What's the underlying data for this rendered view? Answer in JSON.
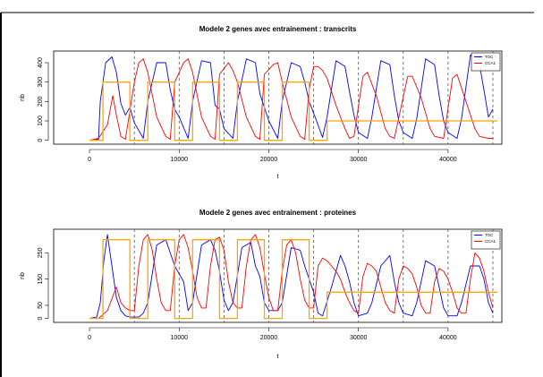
{
  "chart_data": [
    {
      "type": "line",
      "title": "Modele 2 genes avec entrainement : transcrits",
      "xlabel": "t",
      "ylabel": "nb",
      "xlim": [
        -4000,
        46000
      ],
      "ylim": [
        -20,
        460
      ],
      "xticks": [
        "0",
        "10000",
        "20000",
        "30000",
        "40000"
      ],
      "yticks": [
        "0",
        "100",
        "200",
        "300",
        "400"
      ],
      "grid": false,
      "legend_position": "top-right",
      "dashed_vlines": [
        5000,
        10000,
        15000,
        20000,
        25000,
        30000,
        35000,
        40000,
        45000
      ],
      "series": [
        {
          "name": "TOC",
          "color": "#0000ff",
          "x": [
            0,
            1000,
            1200,
            1800,
            2500,
            3000,
            3500,
            4000,
            4500,
            5000,
            6000,
            6500,
            7500,
            8500,
            9000,
            9500,
            10000,
            11000,
            11500,
            12500,
            13500,
            14000,
            14500,
            15000,
            16000,
            16500,
            17500,
            18500,
            19000,
            19500,
            20000,
            21000,
            21500,
            22500,
            23500,
            24000,
            24500,
            25000,
            26000,
            26500,
            27500,
            28500,
            29000,
            29500,
            30000,
            31000,
            31500,
            32500,
            33500,
            34000,
            34500,
            35000,
            36000,
            36500,
            37500,
            38500,
            39000,
            39500,
            40000,
            41000,
            41500,
            42500,
            43500,
            44000,
            44500,
            45000
          ],
          "y": [
            0,
            5,
            200,
            400,
            430,
            350,
            190,
            130,
            170,
            90,
            10,
            200,
            400,
            400,
            260,
            160,
            120,
            10,
            200,
            410,
            400,
            180,
            160,
            60,
            10,
            200,
            420,
            400,
            240,
            170,
            100,
            10,
            200,
            400,
            380,
            300,
            200,
            140,
            15,
            120,
            410,
            380,
            250,
            130,
            40,
            10,
            120,
            410,
            390,
            230,
            100,
            40,
            10,
            110,
            420,
            390,
            230,
            100,
            40,
            10,
            110,
            440,
            390,
            260,
            120,
            160
          ]
        },
        {
          "name": "CCA1",
          "color": "#ff0000",
          "x": [
            0,
            1000,
            2000,
            2600,
            3000,
            3500,
            4000,
            5000,
            5500,
            6000,
            6500,
            7500,
            8500,
            9000,
            9500,
            10500,
            11000,
            11500,
            12500,
            13500,
            14000,
            14500,
            15500,
            16000,
            16500,
            17500,
            18500,
            19000,
            19500,
            20500,
            21000,
            21500,
            22500,
            23500,
            24000,
            24500,
            25000,
            25500,
            26000,
            26500,
            27500,
            28500,
            29000,
            29500,
            30500,
            31000,
            32000,
            33000,
            33500,
            34000,
            35500,
            36000,
            37000,
            38000,
            38500,
            39500,
            40500,
            41000,
            42000,
            43000,
            43500,
            44500,
            45000
          ],
          "y": [
            0,
            10,
            80,
            230,
            130,
            20,
            5,
            300,
            400,
            420,
            350,
            120,
            20,
            5,
            300,
            400,
            420,
            350,
            120,
            20,
            5,
            340,
            400,
            360,
            300,
            120,
            20,
            5,
            340,
            390,
            400,
            300,
            120,
            20,
            5,
            260,
            380,
            380,
            360,
            320,
            180,
            60,
            10,
            20,
            330,
            350,
            230,
            60,
            20,
            10,
            330,
            330,
            220,
            60,
            20,
            10,
            320,
            340,
            200,
            60,
            20,
            10,
            10
          ]
        },
        {
          "name": "",
          "color": "#ffa500",
          "x": [
            0,
            1500,
            1500,
            4500,
            4500,
            6500,
            6500,
            9500,
            9500,
            11500,
            11500,
            14500,
            14500,
            16500,
            16500,
            19500,
            19500,
            21500,
            21500,
            24500,
            24500,
            26500,
            26500,
            45500
          ],
          "y": [
            0,
            0,
            300,
            300,
            0,
            0,
            300,
            300,
            0,
            0,
            300,
            300,
            0,
            0,
            300,
            300,
            0,
            0,
            300,
            300,
            0,
            0,
            100,
            100
          ]
        }
      ]
    },
    {
      "type": "line",
      "title": "Modele 2 genes avec entrainement : proteines",
      "xlabel": "t",
      "ylabel": "nb",
      "xlim": [
        -4000,
        46000
      ],
      "ylim": [
        -15,
        340
      ],
      "xticks": [
        "0",
        "10000",
        "20000",
        "30000",
        "40000"
      ],
      "yticks": [
        "0",
        "50",
        "150",
        "250"
      ],
      "grid": false,
      "legend_position": "top-right",
      "dashed_vlines": [
        5000,
        10000,
        15000,
        20000,
        25000,
        30000,
        35000,
        40000,
        45000
      ],
      "series": [
        {
          "name": "TOC",
          "color": "#0000ff",
          "x": [
            0,
            800,
            1200,
            1600,
            2000,
            2500,
            3000,
            3500,
            4000,
            4500,
            5000,
            5500,
            6000,
            6500,
            7500,
            8500,
            9000,
            9500,
            10000,
            10500,
            11000,
            11500,
            12500,
            13500,
            14000,
            14500,
            15000,
            15500,
            16000,
            17000,
            18000,
            18500,
            19000,
            19500,
            20000,
            21000,
            21500,
            22500,
            23500,
            24000,
            24500,
            25000,
            25500,
            26000,
            27000,
            28000,
            28500,
            29000,
            29500,
            30000,
            31000,
            31500,
            32500,
            33500,
            34000,
            34500,
            35000,
            36000,
            36500,
            37500,
            38500,
            39000,
            39500,
            40000,
            41000,
            41500,
            42500,
            43500,
            44000,
            44500,
            45000
          ],
          "y": [
            0,
            5,
            60,
            220,
            320,
            200,
            80,
            30,
            10,
            5,
            5,
            5,
            20,
            60,
            280,
            300,
            250,
            200,
            170,
            140,
            30,
            60,
            280,
            300,
            260,
            180,
            70,
            30,
            60,
            270,
            290,
            200,
            160,
            60,
            30,
            30,
            60,
            270,
            260,
            200,
            150,
            100,
            20,
            10,
            120,
            240,
            200,
            140,
            60,
            10,
            20,
            60,
            200,
            240,
            140,
            60,
            20,
            10,
            60,
            220,
            200,
            120,
            40,
            10,
            10,
            60,
            200,
            200,
            150,
            60,
            20
          ]
        },
        {
          "name": "CCA1",
          "color": "#ff0000",
          "x": [
            0,
            1000,
            2000,
            3000,
            3500,
            4000,
            4500,
            5000,
            5500,
            6000,
            6500,
            7000,
            7500,
            8000,
            8500,
            9000,
            9500,
            10000,
            10500,
            11000,
            11500,
            12000,
            12500,
            13000,
            13500,
            14000,
            14500,
            15000,
            15500,
            16000,
            16500,
            17000,
            17500,
            18000,
            18500,
            19000,
            19500,
            20000,
            20500,
            21000,
            21500,
            22000,
            22500,
            23000,
            23500,
            24000,
            24500,
            25000,
            25500,
            26000,
            26500,
            27000,
            27500,
            28000,
            28500,
            29000,
            29500,
            30000,
            30500,
            31000,
            31500,
            32000,
            32500,
            33000,
            33500,
            34000,
            34500,
            35000,
            35500,
            36000,
            36500,
            37000,
            37500,
            38000,
            38500,
            39000,
            39500,
            40000,
            40500,
            41000,
            41500,
            42000,
            42500,
            43000,
            43500,
            44000,
            44500,
            45000
          ],
          "y": [
            0,
            0,
            30,
            120,
            60,
            40,
            30,
            30,
            200,
            300,
            320,
            260,
            150,
            60,
            30,
            30,
            200,
            300,
            320,
            270,
            180,
            80,
            40,
            40,
            200,
            300,
            310,
            260,
            140,
            60,
            40,
            40,
            200,
            300,
            320,
            270,
            170,
            80,
            30,
            30,
            180,
            280,
            300,
            250,
            150,
            70,
            40,
            40,
            200,
            230,
            220,
            200,
            180,
            150,
            100,
            60,
            30,
            20,
            160,
            210,
            200,
            180,
            120,
            60,
            30,
            20,
            150,
            200,
            190,
            170,
            120,
            50,
            20,
            20,
            140,
            190,
            180,
            150,
            100,
            40,
            20,
            20,
            150,
            250,
            230,
            180,
            100,
            40
          ]
        },
        {
          "name": "",
          "color": "#ffa500",
          "x": [
            0,
            1500,
            1500,
            4500,
            4500,
            6500,
            6500,
            9500,
            9500,
            11500,
            11500,
            14500,
            14500,
            16500,
            16500,
            19500,
            19500,
            21500,
            21500,
            24500,
            24500,
            26500,
            26500,
            45500
          ],
          "y": [
            0,
            0,
            300,
            300,
            0,
            0,
            300,
            300,
            0,
            0,
            300,
            300,
            0,
            0,
            300,
            300,
            0,
            0,
            300,
            300,
            0,
            0,
            100,
            100
          ]
        }
      ]
    }
  ]
}
